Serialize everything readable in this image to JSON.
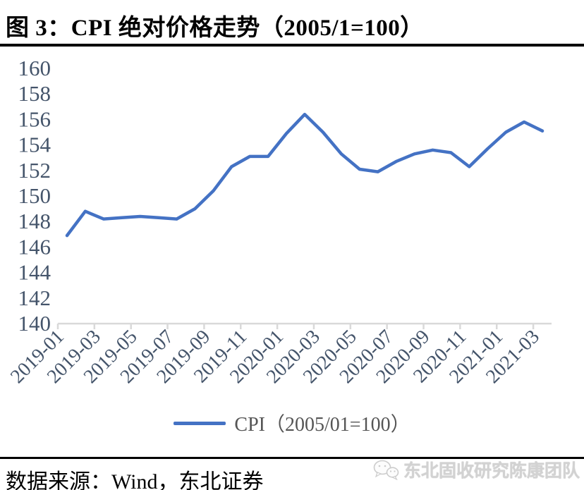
{
  "header": {
    "figure_title": "图 3：CPI 绝对价格走势（2005/1=100）"
  },
  "legend": {
    "label": "CPI（2005/01=100）"
  },
  "footer": {
    "source_label": "数据来源：Wind，东北证券"
  },
  "watermark": {
    "text": "东北固收研究陈康团队",
    "icon": "wechat-icon"
  },
  "colors": {
    "line_blue": "#4472C4",
    "axis_gray": "#D9D9D9",
    "tick_label": "#44546A",
    "rule_black": "#000000",
    "watermark_gray": "#D2D2D2"
  },
  "chart_data": {
    "type": "line",
    "title": "图 3：CPI 绝对价格走势（2005/1=100）",
    "xlabel": "",
    "ylabel": "",
    "categories": [
      "2019-01",
      "2019-02",
      "2019-03",
      "2019-04",
      "2019-05",
      "2019-06",
      "2019-07",
      "2019-08",
      "2019-09",
      "2019-10",
      "2019-11",
      "2019-12",
      "2020-01",
      "2020-02",
      "2020-03",
      "2020-04",
      "2020-05",
      "2020-06",
      "2020-07",
      "2020-08",
      "2020-09",
      "2020-10",
      "2020-11",
      "2020-12",
      "2021-01",
      "2021-02",
      "2021-03"
    ],
    "series": [
      {
        "name": "CPI（2005/01=100）",
        "values": [
          146.9,
          148.8,
          148.2,
          148.3,
          148.4,
          148.3,
          148.2,
          149.0,
          150.4,
          152.3,
          153.1,
          153.1,
          154.9,
          156.4,
          155.0,
          153.3,
          152.1,
          151.9,
          152.7,
          153.3,
          153.6,
          153.4,
          152.3,
          153.7,
          155.0,
          155.8,
          155.1
        ]
      }
    ],
    "ylim": [
      140,
      160
    ],
    "ytick_step": 2,
    "xtick_label_interval": 2,
    "x_tick_rotation": -45,
    "grid": false,
    "legend_position": "bottom"
  }
}
